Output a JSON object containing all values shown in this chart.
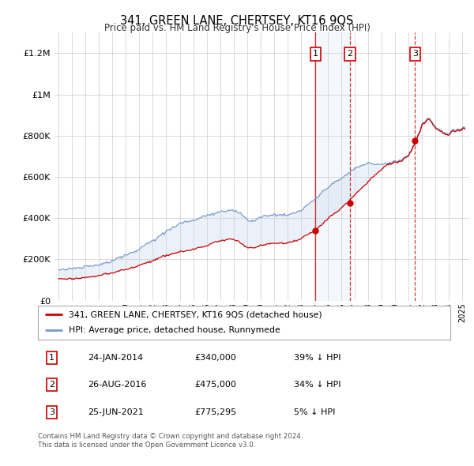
{
  "title": "341, GREEN LANE, CHERTSEY, KT16 9QS",
  "subtitle": "Price paid vs. HM Land Registry's House Price Index (HPI)",
  "legend_line1": "341, GREEN LANE, CHERTSEY, KT16 9QS (detached house)",
  "legend_line2": "HPI: Average price, detached house, Runnymede",
  "red_color": "#cc0000",
  "blue_color": "#7799cc",
  "fill_color": "#c8d8ee",
  "sale1_label": "1",
  "sale1_date": "24-JAN-2014",
  "sale1_price": "£340,000",
  "sale1_hpi": "39% ↓ HPI",
  "sale2_label": "2",
  "sale2_date": "26-AUG-2016",
  "sale2_price": "£475,000",
  "sale2_hpi": "34% ↓ HPI",
  "sale3_label": "3",
  "sale3_date": "25-JUN-2021",
  "sale3_price": "£775,295",
  "sale3_hpi": "5% ↓ HPI",
  "footnote1": "Contains HM Land Registry data © Crown copyright and database right 2024.",
  "footnote2": "This data is licensed under the Open Government Licence v3.0.",
  "sale1_year": 2014.07,
  "sale2_year": 2016.65,
  "sale3_year": 2021.48,
  "sale1_value": 340000,
  "sale2_value": 475000,
  "sale3_value": 775295,
  "ylim": [
    0,
    1300000
  ],
  "yticks": [
    0,
    200000,
    400000,
    600000,
    800000,
    1000000,
    1200000
  ],
  "xlim_min": 1994.7,
  "xlim_max": 2025.5
}
